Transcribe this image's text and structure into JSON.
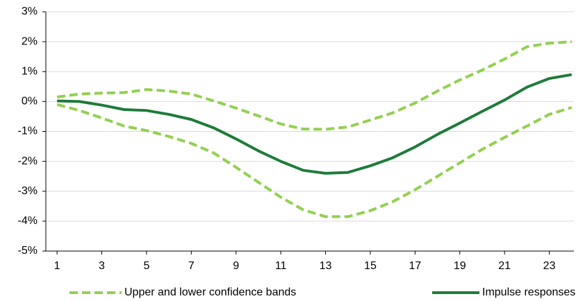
{
  "chart_data": {
    "type": "line",
    "x": [
      1,
      2,
      3,
      4,
      5,
      6,
      7,
      8,
      9,
      10,
      11,
      12,
      13,
      14,
      15,
      16,
      17,
      18,
      19,
      20,
      21,
      22,
      23,
      24
    ],
    "series": [
      {
        "name": "Upper and lower confidence bands",
        "color": "#92d050",
        "dash": true,
        "values": [
          0.15,
          0.25,
          0.28,
          0.3,
          0.4,
          0.35,
          0.25,
          0.02,
          -0.22,
          -0.48,
          -0.75,
          -0.92,
          -0.93,
          -0.85,
          -0.62,
          -0.38,
          -0.05,
          0.35,
          0.72,
          1.05,
          1.42,
          1.83,
          1.95,
          2.0
        ]
      },
      {
        "color": "#92d050",
        "dash": true,
        "values": [
          -0.1,
          -0.3,
          -0.55,
          -0.82,
          -0.97,
          -1.17,
          -1.4,
          -1.72,
          -2.2,
          -2.7,
          -3.2,
          -3.62,
          -3.85,
          -3.85,
          -3.65,
          -3.35,
          -2.95,
          -2.5,
          -2.05,
          -1.6,
          -1.2,
          -0.82,
          -0.43,
          -0.2
        ]
      },
      {
        "name": "Impulse responses",
        "color": "#1e7b3a",
        "dash": false,
        "values": [
          0.02,
          0,
          -0.12,
          -0.27,
          -0.3,
          -0.43,
          -0.6,
          -0.88,
          -1.25,
          -1.65,
          -2.0,
          -2.3,
          -2.4,
          -2.37,
          -2.15,
          -1.88,
          -1.52,
          -1.1,
          -0.72,
          -0.33,
          0.05,
          0.48,
          0.77,
          0.9
        ]
      }
    ],
    "xlim": [
      0.5,
      24.1
    ],
    "xticks": [
      1,
      3,
      5,
      7,
      9,
      11,
      13,
      15,
      17,
      19,
      21,
      23
    ],
    "ylim": [
      -5,
      3
    ],
    "yticks": [
      {
        "value": -5,
        "label": "-5%"
      },
      {
        "value": -4,
        "label": "-4%"
      },
      {
        "value": -3,
        "label": "-3%"
      },
      {
        "value": -2,
        "label": "-2%"
      },
      {
        "value": -1,
        "label": "-1%"
      },
      {
        "value": 0,
        "label": "0%"
      },
      {
        "value": 1,
        "label": "1%"
      },
      {
        "value": 2,
        "label": "2%"
      },
      {
        "value": 3,
        "label": "3%"
      }
    ],
    "grid": true
  }
}
